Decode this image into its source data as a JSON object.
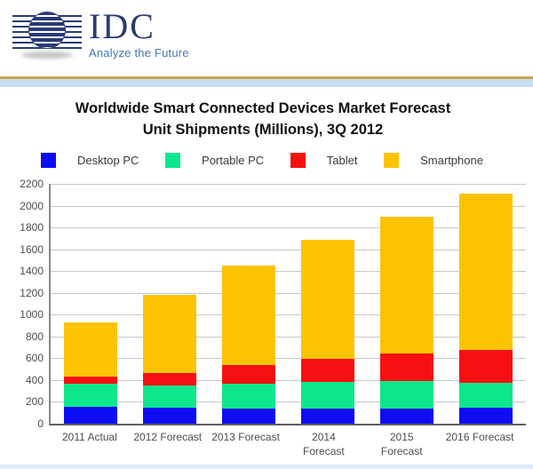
{
  "header": {
    "logo_text": "IDC",
    "tagline": "Analyze the Future"
  },
  "title": {
    "line1": "Worldwide Smart Connected Devices Market Forecast",
    "line2": "Unit Shipments (Millions), 3Q 2012"
  },
  "legend": [
    {
      "label": "Desktop PC",
      "color": "#0d0df2"
    },
    {
      "label": "Portable PC",
      "color": "#0de68c"
    },
    {
      "label": "Tablet",
      "color": "#f51111"
    },
    {
      "label": "Smartphone",
      "color": "#fcc303"
    }
  ],
  "chart_data": {
    "type": "bar",
    "stacked": true,
    "title": "Worldwide Smart Connected Devices Market Forecast — Unit Shipments (Millions), 3Q 2012",
    "categories": [
      "2011 Actual",
      "2012 Forecast",
      "2013 Forecast",
      "2014 Forecast",
      "2015 Forecast",
      "2016 Forecast"
    ],
    "xlabel_lines": [
      [
        "2011 Actual"
      ],
      [
        "2012 Forecast"
      ],
      [
        "2013 Forecast"
      ],
      [
        "2014",
        "Forecast"
      ],
      [
        "2015",
        "Forecast"
      ],
      [
        "2016 Forecast"
      ]
    ],
    "series": [
      {
        "name": "Desktop PC",
        "color": "#0d0df2",
        "values": [
          155,
          148,
          138,
          140,
          140,
          145
        ]
      },
      {
        "name": "Portable PC",
        "color": "#0de68c",
        "values": [
          209,
          202,
          232,
          245,
          250,
          230
        ]
      },
      {
        "name": "Tablet",
        "color": "#f51111",
        "values": [
          70,
          117,
          165,
          210,
          250,
          300
        ]
      },
      {
        "name": "Smartphone",
        "color": "#fcc303",
        "values": [
          494,
          718,
          915,
          1095,
          1260,
          1435
        ]
      }
    ],
    "totals": [
      928,
      1185,
      1450,
      1690,
      1900,
      2110
    ],
    "ylim": [
      0,
      2200
    ],
    "ytick_step": 200,
    "yticks": [
      0,
      200,
      400,
      600,
      800,
      1000,
      1200,
      1400,
      1600,
      1800,
      2000,
      2200
    ],
    "grid": true,
    "legend_position": "top",
    "xlabel": "",
    "ylabel": ""
  },
  "colors": {
    "logo_navy": "#2a3a75",
    "tagline_blue": "#4577b6",
    "gold_rule": "#c9a255",
    "blue_band": "#c9dff1",
    "gridline": "#c8c8c8",
    "axis_text": "#4d4d4d",
    "title_text": "#111111"
  }
}
